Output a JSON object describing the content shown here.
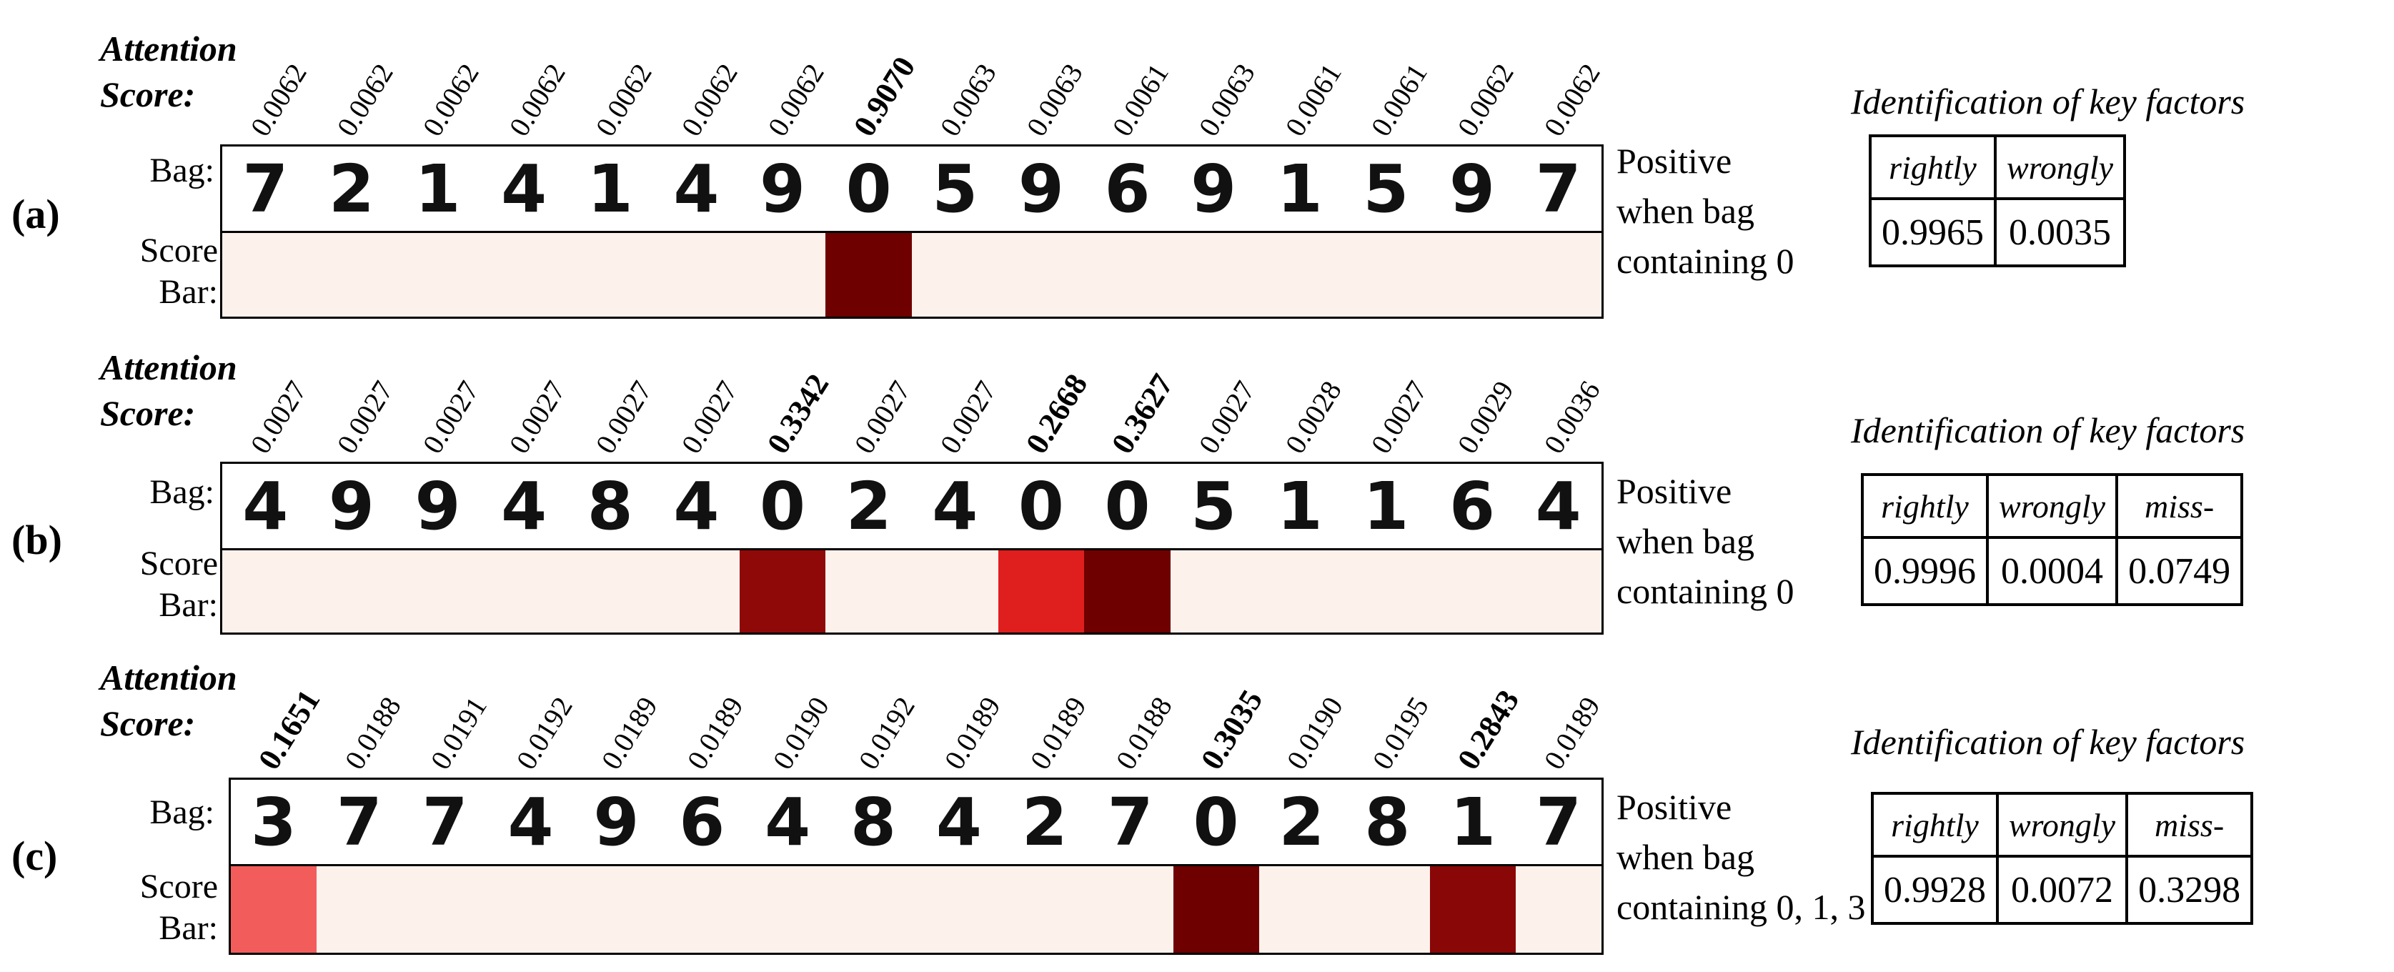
{
  "labels": {
    "attention_line1": "Attention",
    "attention_line2": "Score:",
    "bag": "Bag:",
    "score_bar_line1": "Score",
    "score_bar_line2": "Bar:",
    "key_factors_title": "Identification of key factors"
  },
  "colors": {
    "bar_base": "#fdf1ec",
    "scale_low": "#fdf1ec",
    "scale_mid": "#ee2222",
    "scale_high": "#6f0000"
  },
  "panels": [
    {
      "letter": "(a)",
      "scores": [
        "0.0062",
        "0.0062",
        "0.0062",
        "0.0062",
        "0.0062",
        "0.0062",
        "0.0062",
        "0.9070",
        "0.0063",
        "0.0063",
        "0.0061",
        "0.0063",
        "0.0061",
        "0.0061",
        "0.0062",
        "0.0062"
      ],
      "values": [
        0.0062,
        0.0062,
        0.0062,
        0.0062,
        0.0062,
        0.0062,
        0.0062,
        0.907,
        0.0063,
        0.0063,
        0.0061,
        0.0063,
        0.0061,
        0.0061,
        0.0062,
        0.0062
      ],
      "key_indices": [
        7
      ],
      "digits": [
        "7",
        "2",
        "1",
        "4",
        "1",
        "4",
        "9",
        "0",
        "5",
        "9",
        "6",
        "9",
        "1",
        "5",
        "9",
        "7"
      ],
      "positive_line1": "Positive",
      "positive_line2": "when bag",
      "positive_line3": "containing 0",
      "table_headers": [
        "rightly",
        "wrongly"
      ],
      "table_values": [
        "0.9965",
        "0.0035"
      ]
    },
    {
      "letter": "(b)",
      "scores": [
        "0.0027",
        "0.0027",
        "0.0027",
        "0.0027",
        "0.0027",
        "0.0027",
        "0.3342",
        "0.0027",
        "0.0027",
        "0.2668",
        "0.3627",
        "0.0027",
        "0.0028",
        "0.0027",
        "0.0029",
        "0.0036"
      ],
      "values": [
        0.0027,
        0.0027,
        0.0027,
        0.0027,
        0.0027,
        0.0027,
        0.3342,
        0.0027,
        0.0027,
        0.2668,
        0.3627,
        0.0027,
        0.0028,
        0.0027,
        0.0029,
        0.0036
      ],
      "key_indices": [
        6,
        9,
        10
      ],
      "digits": [
        "4",
        "9",
        "9",
        "4",
        "8",
        "4",
        "0",
        "2",
        "4",
        "0",
        "0",
        "5",
        "1",
        "1",
        "6",
        "4"
      ],
      "positive_line1": "Positive",
      "positive_line2": "when bag",
      "positive_line3": "containing 0",
      "table_headers": [
        "rightly",
        "wrongly",
        "miss-"
      ],
      "table_values": [
        "0.9996",
        "0.0004",
        "0.0749"
      ]
    },
    {
      "letter": "(c)",
      "scores": [
        "0.1651",
        "0.0188",
        "0.0191",
        "0.0192",
        "0.0189",
        "0.0189",
        "0.0190",
        "0.0192",
        "0.0189",
        "0.0189",
        "0.0188",
        "0.3035",
        "0.0190",
        "0.0195",
        "0.2843",
        "0.0189"
      ],
      "values": [
        0.1651,
        0.0188,
        0.0191,
        0.0192,
        0.0189,
        0.0189,
        0.019,
        0.0192,
        0.0189,
        0.0189,
        0.0188,
        0.3035,
        0.019,
        0.0195,
        0.2843,
        0.0189
      ],
      "key_indices": [
        0,
        11,
        14
      ],
      "digits": [
        "3",
        "7",
        "7",
        "4",
        "9",
        "6",
        "4",
        "8",
        "4",
        "2",
        "7",
        "0",
        "2",
        "8",
        "1",
        "7"
      ],
      "positive_line1": "Positive",
      "positive_line2": "when bag",
      "positive_line3": "containing 0, 1, 3",
      "table_headers": [
        "rightly",
        "wrongly",
        "miss-"
      ],
      "table_values": [
        "0.9928",
        "0.0072",
        "0.3298"
      ]
    }
  ]
}
